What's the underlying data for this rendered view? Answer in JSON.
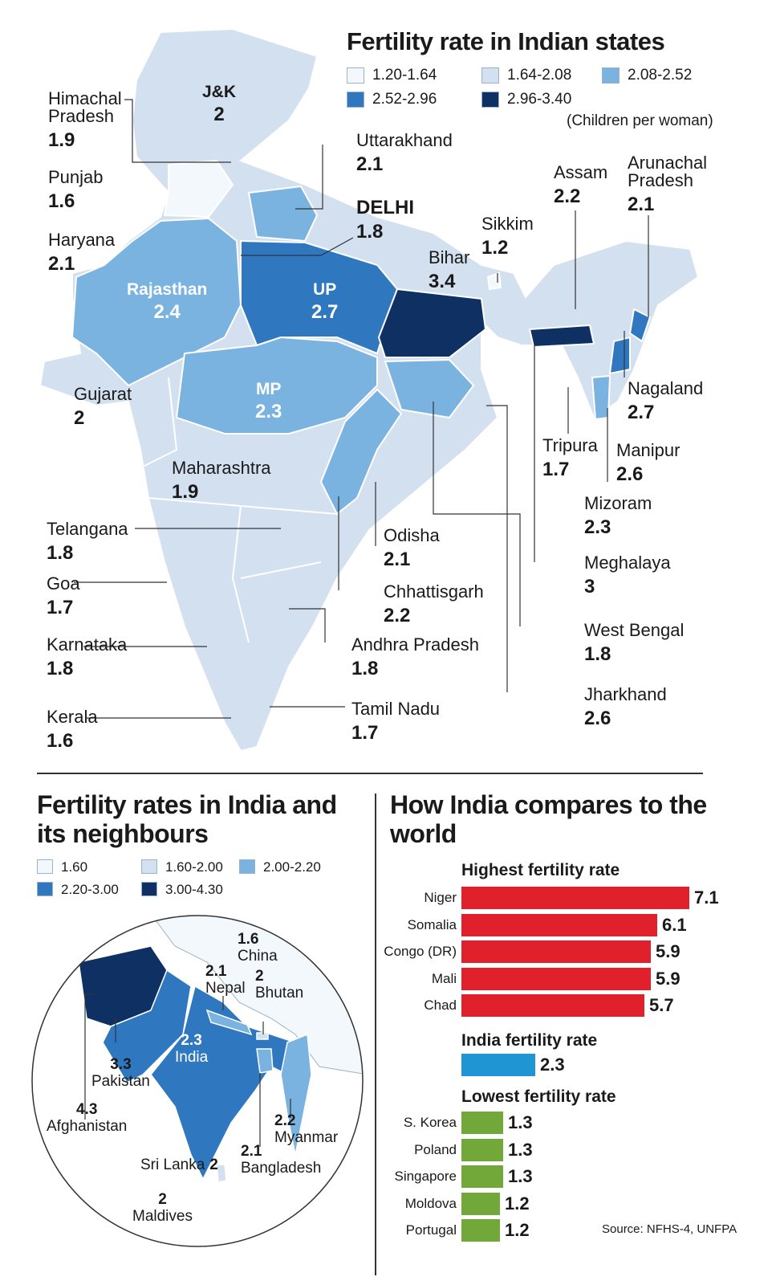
{
  "title": "Fertility rate in Indian states",
  "legend": [
    {
      "label": "1.20-1.64",
      "color": "#f3f8fd"
    },
    {
      "label": "1.64-2.08",
      "color": "#d2e0f0"
    },
    {
      "label": "2.08-2.52",
      "color": "#7ab3df"
    },
    {
      "label": "2.52-2.96",
      "color": "#2f78c0"
    },
    {
      "label": "2.96-3.40",
      "color": "#0f3063"
    }
  ],
  "unit_note": "(Children per woman)",
  "states": [
    {
      "name": "J&K",
      "value": "2"
    },
    {
      "name": "Himachal Pradesh",
      "value": "1.9"
    },
    {
      "name": "Punjab",
      "value": "1.6"
    },
    {
      "name": "Haryana",
      "value": "2.1"
    },
    {
      "name": "Uttarakhand",
      "value": "2.1"
    },
    {
      "name": "DELHI",
      "value": "1.8"
    },
    {
      "name": "Rajasthan",
      "value": "2.4"
    },
    {
      "name": "UP",
      "value": "2.7"
    },
    {
      "name": "Bihar",
      "value": "3.4"
    },
    {
      "name": "Sikkim",
      "value": "1.2"
    },
    {
      "name": "Assam",
      "value": "2.2"
    },
    {
      "name": "Arunachal Pradesh",
      "value": "2.1"
    },
    {
      "name": "Nagaland",
      "value": "2.7"
    },
    {
      "name": "Gujarat",
      "value": "2"
    },
    {
      "name": "MP",
      "value": "2.3"
    },
    {
      "name": "Tripura",
      "value": "1.7"
    },
    {
      "name": "Manipur",
      "value": "2.6"
    },
    {
      "name": "Mizoram",
      "value": "2.3"
    },
    {
      "name": "Maharashtra",
      "value": "1.9"
    },
    {
      "name": "Telangana",
      "value": "1.8"
    },
    {
      "name": "Odisha",
      "value": "2.1"
    },
    {
      "name": "Meghalaya",
      "value": "3"
    },
    {
      "name": "Goa",
      "value": "1.7"
    },
    {
      "name": "Chhattisgarh",
      "value": "2.2"
    },
    {
      "name": "West Bengal",
      "value": "1.8"
    },
    {
      "name": "Karnataka",
      "value": "1.8"
    },
    {
      "name": "Andhra Pradesh",
      "value": "1.8"
    },
    {
      "name": "Jharkhand",
      "value": "2.6"
    },
    {
      "name": "Kerala",
      "value": "1.6"
    },
    {
      "name": "Tamil Nadu",
      "value": "1.7"
    }
  ],
  "neighbours": {
    "title": "Fertility rates in India and its neighbours",
    "legend": [
      {
        "label": "1.60",
        "color": "#f3f8fd"
      },
      {
        "label": "1.60-2.00",
        "color": "#d2e0f0"
      },
      {
        "label": "2.00-2.20",
        "color": "#7ab3df"
      },
      {
        "label": "2.20-3.00",
        "color": "#2f78c0"
      },
      {
        "label": "3.00-4.30",
        "color": "#0f3063"
      }
    ],
    "countries": [
      {
        "name": "China",
        "value": "1.6"
      },
      {
        "name": "Nepal",
        "value": "2.1"
      },
      {
        "name": "Bhutan",
        "value": "2"
      },
      {
        "name": "India",
        "value": "2.3"
      },
      {
        "name": "Pakistan",
        "value": "3.3"
      },
      {
        "name": "Afghanistan",
        "value": "4.3"
      },
      {
        "name": "Myanmar",
        "value": "2.2"
      },
      {
        "name": "Bangladesh",
        "value": "2.1"
      },
      {
        "name": "Sri Lanka",
        "value": "2"
      },
      {
        "name": "Maldives",
        "value": "2"
      }
    ]
  },
  "world": {
    "title": "How India compares to the world",
    "highest_label": "Highest fertility rate",
    "india_label": "India fertility rate",
    "lowest_label": "Lowest fertility rate",
    "colors": {
      "highest": "#e0202a",
      "india": "#1f95d3",
      "lowest": "#72a83a"
    },
    "source": "Source: NFHS-4, UNFPA"
  },
  "chart_data": {
    "type": "bar",
    "title": "How India compares to the world",
    "series": [
      {
        "name": "Highest fertility rate",
        "categories": [
          "Niger",
          "Somalia",
          "Congo (DR)",
          "Mali",
          "Chad"
        ],
        "values": [
          7.1,
          6.1,
          5.9,
          5.9,
          5.7
        ]
      },
      {
        "name": "India fertility rate",
        "categories": [
          ""
        ],
        "values": [
          2.3
        ]
      },
      {
        "name": "Lowest fertility rate",
        "categories": [
          "S. Korea",
          "Poland",
          "Singapore",
          "Moldova",
          "Portugal"
        ],
        "values": [
          1.3,
          1.3,
          1.3,
          1.2,
          1.2
        ]
      }
    ]
  }
}
